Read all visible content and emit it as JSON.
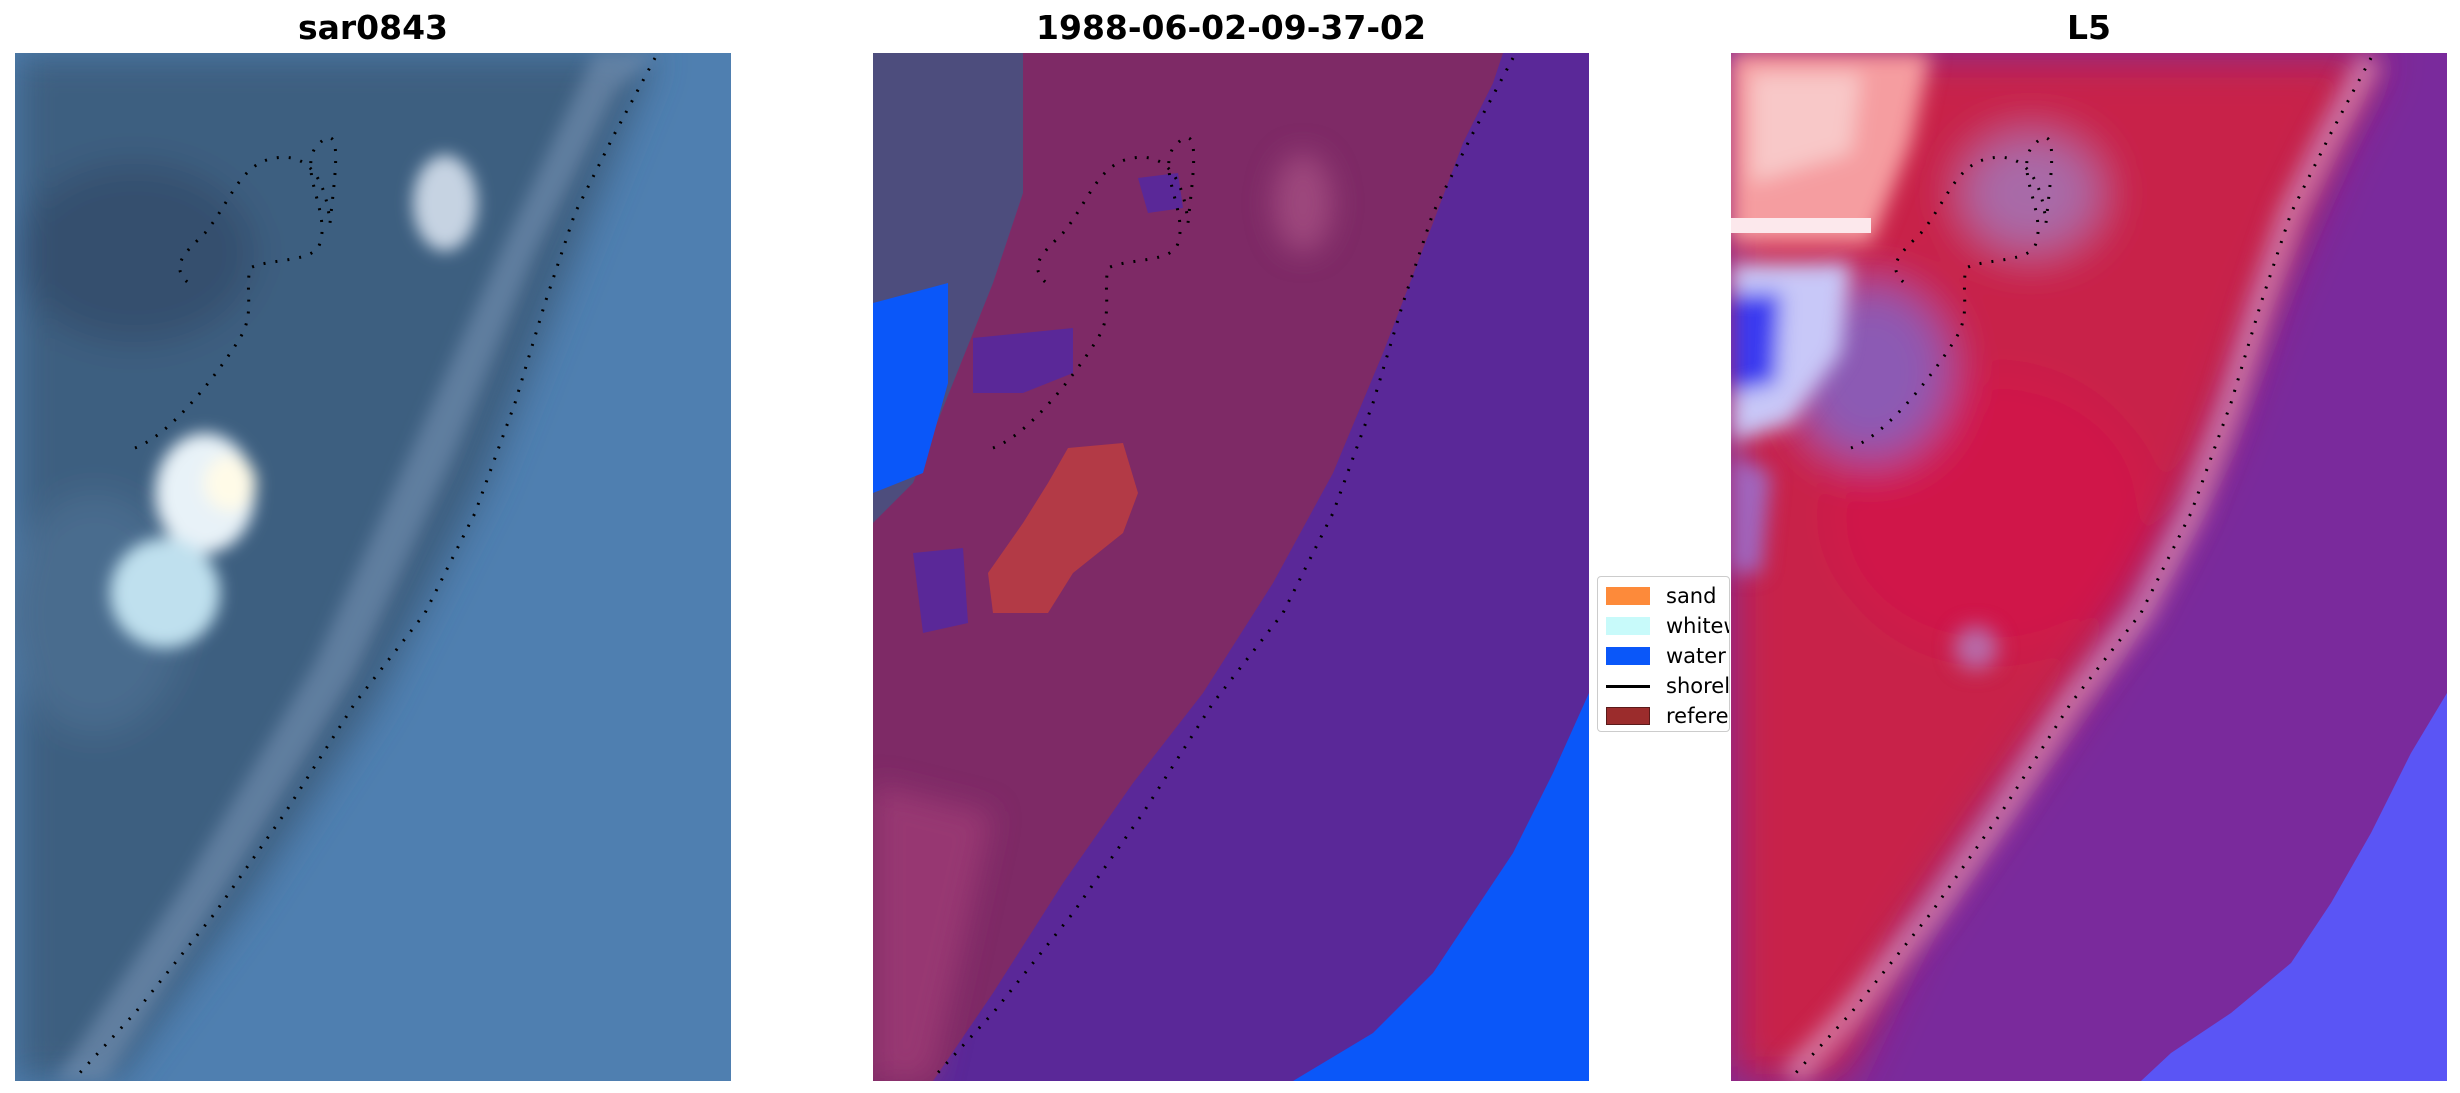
{
  "panels": [
    {
      "title": "sar0843"
    },
    {
      "title": "1988-06-02-09-37-02"
    },
    {
      "title": "L5"
    }
  ],
  "legend": {
    "items": [
      {
        "label": "sand",
        "color": "#fd8a3a"
      },
      {
        "label": "whitewater",
        "color": "#c8fafa"
      },
      {
        "label": "water",
        "color": "#0a57f9"
      },
      {
        "label": "shoreline",
        "color": "#000000"
      },
      {
        "label": "reference",
        "color": "#9b2c2c"
      }
    ]
  },
  "colors": {
    "rgb_water": "#4f7fb0",
    "rgb_land": "#3d5f80",
    "class_land": "#7e2a66",
    "class_ocean": "#5a2898",
    "class_water": "#0a57f9",
    "ref_patch": "#b33a46",
    "l5_land": "#c8204a",
    "l5_ocean": "#7a2a9c",
    "l5_blue": "#5a55f5"
  }
}
